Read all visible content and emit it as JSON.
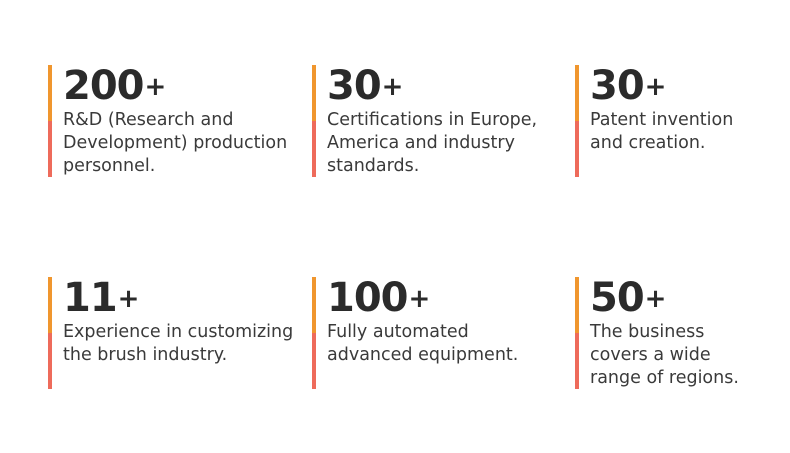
{
  "stats": [
    {
      "number": "200",
      "suffix": "+",
      "description": "R&D (Research and\nDevelopment) production\npersonnel."
    },
    {
      "number": "30",
      "suffix": "+",
      "description": "Certifications in Europe,\n America and industry\nstandards."
    },
    {
      "number": "30",
      "suffix": "+",
      "description": "Patent invention\nand creation."
    },
    {
      "number": "11",
      "suffix": "+",
      "description": "Experience in customizing\nthe brush industry."
    },
    {
      "number": "100",
      "suffix": "+",
      "description": "Fully automated\nadvanced equipment."
    },
    {
      "number": "50",
      "suffix": "+",
      "description": "The business\ncovers a wide\nrange of regions."
    }
  ],
  "colors": {
    "bar_top": "#f0962e",
    "bar_bottom": "#ee6b5b",
    "text": "#2b2b2b"
  }
}
